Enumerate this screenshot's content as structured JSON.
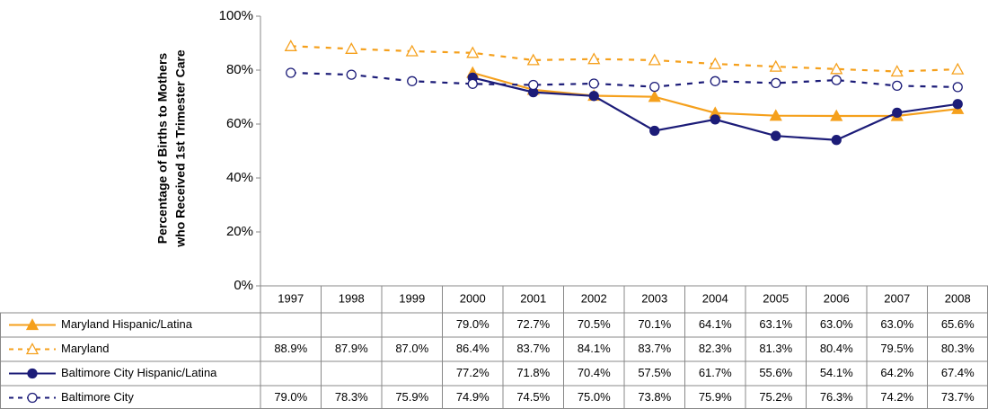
{
  "chart_data": {
    "type": "line",
    "y_label_lines": [
      "Percentage of Births to Mothers",
      "who Received 1st Trimester Care"
    ],
    "categories": [
      "1997",
      "1998",
      "1999",
      "2000",
      "2001",
      "2002",
      "2003",
      "2004",
      "2005",
      "2006",
      "2007",
      "2008"
    ],
    "ylim": [
      0,
      100
    ],
    "yticks": [
      {
        "value": 0,
        "label": "0%"
      },
      {
        "value": 20,
        "label": "20%"
      },
      {
        "value": 40,
        "label": "40%"
      },
      {
        "value": 60,
        "label": "60%"
      },
      {
        "value": 80,
        "label": "80%"
      },
      {
        "value": 100,
        "label": "100%"
      }
    ],
    "series": [
      {
        "name": "Maryland Hispanic/Latina",
        "color": "#f5a01c",
        "dashed": false,
        "marker": "triangle",
        "filled": true,
        "values": [
          null,
          null,
          null,
          79.0,
          72.7,
          70.5,
          70.1,
          64.1,
          63.1,
          63.0,
          63.0,
          65.6
        ],
        "value_labels": [
          null,
          null,
          null,
          "79.0%",
          "72.7%",
          "70.5%",
          "70.1%",
          "64.1%",
          "63.1%",
          "63.0%",
          "63.0%",
          "65.6%"
        ]
      },
      {
        "name": "Maryland",
        "color": "#f5a01c",
        "dashed": true,
        "marker": "triangle",
        "filled": false,
        "values": [
          88.9,
          87.9,
          87.0,
          86.4,
          83.7,
          84.1,
          83.7,
          82.3,
          81.3,
          80.4,
          79.5,
          80.3
        ],
        "value_labels": [
          "88.9%",
          "87.9%",
          "87.0%",
          "86.4%",
          "83.7%",
          "84.1%",
          "83.7%",
          "82.3%",
          "81.3%",
          "80.4%",
          "79.5%",
          "80.3%"
        ]
      },
      {
        "name": "Baltimore City Hispanic/Latina",
        "color": "#1c1c78",
        "dashed": false,
        "marker": "circle",
        "filled": true,
        "values": [
          null,
          null,
          null,
          77.2,
          71.8,
          70.4,
          57.5,
          61.7,
          55.6,
          54.1,
          64.2,
          67.4
        ],
        "value_labels": [
          null,
          null,
          null,
          "77.2%",
          "71.8%",
          "70.4%",
          "57.5%",
          "61.7%",
          "55.6%",
          "54.1%",
          "64.2%",
          "67.4%"
        ]
      },
      {
        "name": "Baltimore City",
        "color": "#1c1c78",
        "dashed": true,
        "marker": "circle",
        "filled": false,
        "values": [
          79.0,
          78.3,
          75.9,
          74.9,
          74.5,
          75.0,
          73.8,
          75.9,
          75.2,
          76.3,
          74.2,
          73.7
        ],
        "value_labels": [
          "79.0%",
          "78.3%",
          "75.9%",
          "74.9%",
          "74.5%",
          "75.0%",
          "73.8%",
          "75.9%",
          "75.2%",
          "76.3%",
          "74.2%",
          "73.7%"
        ]
      }
    ]
  }
}
